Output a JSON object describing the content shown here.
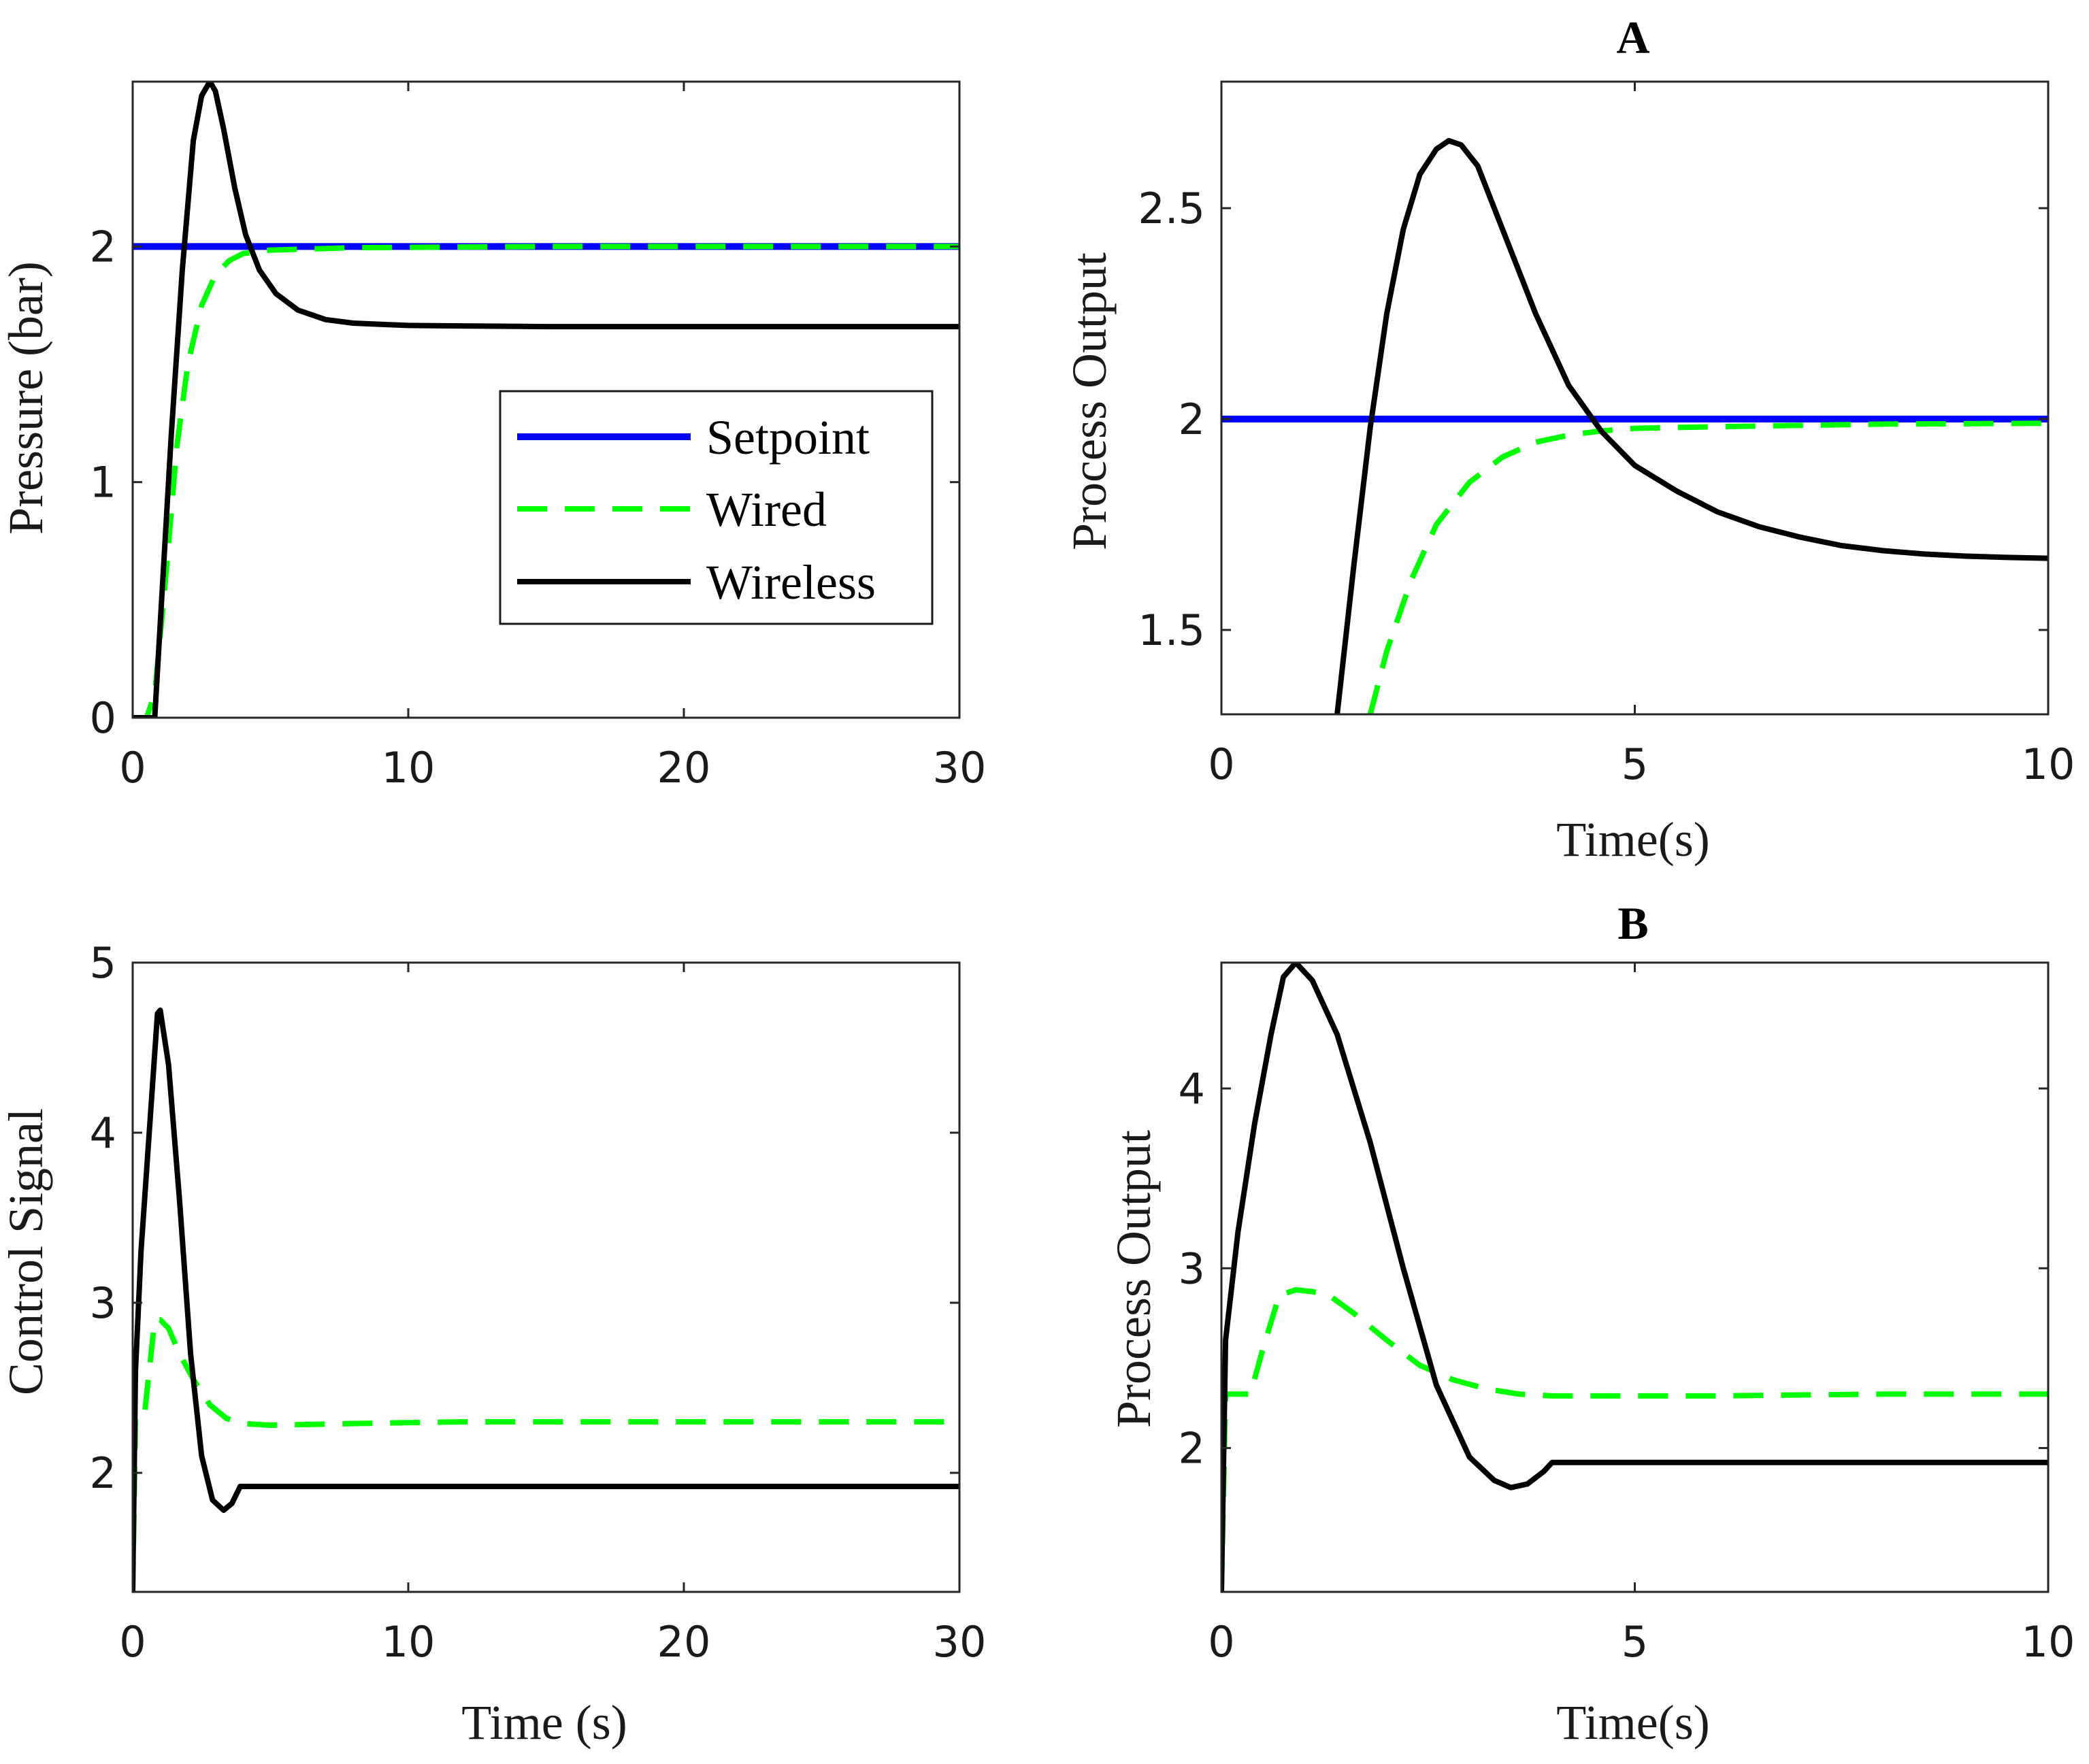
{
  "figure": {
    "legend": {
      "position": "center-right",
      "entries": [
        "Setpoint",
        "Wired",
        "Wireless"
      ]
    }
  },
  "chart_data": [
    {
      "id": "tl",
      "type": "line",
      "title": "",
      "xlabel": "",
      "ylabel": "Pressure (bar)",
      "xlim": [
        0,
        30
      ],
      "ylim": [
        0,
        2.7
      ],
      "xticks": [
        0,
        10,
        20,
        30
      ],
      "xtick_labels": [
        "0",
        "10",
        "20",
        "30"
      ],
      "yticks": [
        0,
        1,
        2
      ],
      "ytick_labels": [
        "0",
        "1",
        "2"
      ],
      "series": [
        {
          "name": "Setpoint",
          "color": "#0000ff",
          "style": "solid",
          "x": [
            0,
            30
          ],
          "y": [
            2,
            2
          ]
        },
        {
          "name": "Wired",
          "color": "#00ff00",
          "style": "dashed",
          "x": [
            0,
            0.5,
            0.8,
            1.2,
            1.6,
            2.0,
            2.5,
            3.0,
            3.5,
            4.0,
            5.0,
            8.0,
            15,
            30
          ],
          "y": [
            0,
            0,
            0.1,
            0.6,
            1.15,
            1.5,
            1.75,
            1.88,
            1.94,
            1.97,
            1.985,
            1.995,
            2.0,
            2.0
          ]
        },
        {
          "name": "Wireless",
          "color": "#000000",
          "style": "solid",
          "x": [
            0,
            0.8,
            1.0,
            1.4,
            1.8,
            2.2,
            2.5,
            2.8,
            3.0,
            3.3,
            3.7,
            4.1,
            4.6,
            5.2,
            6,
            7,
            8,
            9,
            10,
            12,
            15,
            20,
            30
          ],
          "y": [
            0,
            0,
            0.4,
            1.2,
            1.9,
            2.45,
            2.64,
            2.7,
            2.66,
            2.5,
            2.25,
            2.05,
            1.9,
            1.8,
            1.73,
            1.69,
            1.675,
            1.67,
            1.665,
            1.663,
            1.66,
            1.66,
            1.66
          ]
        }
      ]
    },
    {
      "id": "tr",
      "type": "line",
      "title": "A",
      "xlabel": "Time(s)",
      "ylabel": "Process Output",
      "xlim": [
        0,
        10
      ],
      "ylim": [
        1.3,
        2.8
      ],
      "xticks": [
        0,
        5,
        10
      ],
      "xtick_labels": [
        "0",
        "5",
        "10"
      ],
      "yticks": [
        1.5,
        2,
        2.5
      ],
      "ytick_labels": [
        "1.5",
        "2",
        "2.5"
      ],
      "series": [
        {
          "name": "Setpoint",
          "color": "#0000ff",
          "style": "solid",
          "x": [
            0,
            10
          ],
          "y": [
            2,
            2
          ]
        },
        {
          "name": "Wired",
          "color": "#00ff00",
          "style": "dashed",
          "x": [
            1.8,
            2.0,
            2.3,
            2.6,
            3.0,
            3.4,
            3.8,
            4.2,
            4.6,
            5.0,
            6,
            7,
            8,
            10
          ],
          "y": [
            1.3,
            1.45,
            1.62,
            1.75,
            1.85,
            1.91,
            1.945,
            1.962,
            1.972,
            1.978,
            1.982,
            1.985,
            1.988,
            1.99
          ]
        },
        {
          "name": "Wireless",
          "color": "#000000",
          "style": "solid",
          "x": [
            1.4,
            1.6,
            1.8,
            2.0,
            2.2,
            2.4,
            2.6,
            2.75,
            2.9,
            3.1,
            3.4,
            3.8,
            4.2,
            4.6,
            5.0,
            5.5,
            6,
            6.5,
            7,
            7.5,
            8,
            8.5,
            9,
            9.5,
            10
          ],
          "y": [
            1.3,
            1.65,
            1.98,
            2.25,
            2.45,
            2.58,
            2.64,
            2.66,
            2.65,
            2.6,
            2.45,
            2.25,
            2.08,
            1.97,
            1.89,
            1.83,
            1.78,
            1.745,
            1.72,
            1.7,
            1.688,
            1.68,
            1.675,
            1.672,
            1.67
          ]
        }
      ]
    },
    {
      "id": "bl",
      "type": "line",
      "title": "",
      "xlabel": "Time (s)",
      "ylabel": "Control Signal",
      "xlim": [
        0,
        30
      ],
      "ylim": [
        1.3,
        5
      ],
      "xticks": [
        0,
        10,
        20,
        30
      ],
      "xtick_labels": [
        "0",
        "10",
        "20",
        "30"
      ],
      "yticks": [
        2,
        3,
        4,
        5
      ],
      "ytick_labels": [
        "2",
        "3",
        "4",
        "5"
      ],
      "series": [
        {
          "name": "Wired",
          "color": "#00ff00",
          "style": "dashed",
          "x": [
            0,
            0.1,
            0.4,
            0.8,
            1.0,
            1.3,
            1.7,
            2.2,
            2.8,
            3.4,
            4.0,
            5.0,
            8,
            12,
            20,
            30
          ],
          "y": [
            1.3,
            2.3,
            2.3,
            2.9,
            2.9,
            2.85,
            2.7,
            2.55,
            2.4,
            2.32,
            2.29,
            2.28,
            2.29,
            2.3,
            2.3,
            2.3
          ]
        },
        {
          "name": "Wireless",
          "color": "#000000",
          "style": "solid",
          "x": [
            0,
            0.1,
            0.3,
            0.6,
            0.9,
            1.0,
            1.3,
            1.7,
            2.1,
            2.5,
            2.9,
            3.3,
            3.6,
            3.9,
            4.1,
            6,
            10,
            20,
            30
          ],
          "y": [
            1.3,
            2.6,
            3.3,
            4.0,
            4.7,
            4.72,
            4.4,
            3.6,
            2.7,
            2.1,
            1.84,
            1.78,
            1.82,
            1.92,
            1.92,
            1.92,
            1.92,
            1.92,
            1.92
          ]
        }
      ]
    },
    {
      "id": "br",
      "type": "line",
      "title": "B",
      "xlabel": "Time(s)",
      "ylabel": "Process Output",
      "xlim": [
        0,
        10
      ],
      "ylim": [
        1.2,
        4.7
      ],
      "xticks": [
        0,
        5,
        10
      ],
      "xtick_labels": [
        "0",
        "5",
        "10"
      ],
      "yticks": [
        2,
        3,
        4
      ],
      "ytick_labels": [
        "2",
        "3",
        "4"
      ],
      "series": [
        {
          "name": "Wired",
          "color": "#00ff00",
          "style": "dashed",
          "x": [
            0,
            0.05,
            0.35,
            0.5,
            0.7,
            0.9,
            1.1,
            1.3,
            1.6,
            2.0,
            2.4,
            2.8,
            3.2,
            3.6,
            4.0,
            5.0,
            6,
            8,
            10
          ],
          "y": [
            1.2,
            2.3,
            2.3,
            2.55,
            2.85,
            2.88,
            2.87,
            2.85,
            2.75,
            2.6,
            2.46,
            2.38,
            2.33,
            2.3,
            2.29,
            2.29,
            2.29,
            2.3,
            2.3
          ]
        },
        {
          "name": "Wireless",
          "color": "#000000",
          "style": "solid",
          "x": [
            0,
            0.05,
            0.2,
            0.4,
            0.6,
            0.75,
            0.9,
            1.1,
            1.4,
            1.8,
            2.2,
            2.6,
            3.0,
            3.3,
            3.5,
            3.7,
            3.9,
            4.0,
            4.1,
            5,
            6,
            8,
            10
          ],
          "y": [
            1.2,
            2.6,
            3.2,
            3.8,
            4.3,
            4.62,
            4.7,
            4.6,
            4.3,
            3.7,
            3.0,
            2.35,
            1.95,
            1.82,
            1.78,
            1.8,
            1.87,
            1.92,
            1.92,
            1.92,
            1.92,
            1.92,
            1.92
          ]
        }
      ]
    }
  ]
}
